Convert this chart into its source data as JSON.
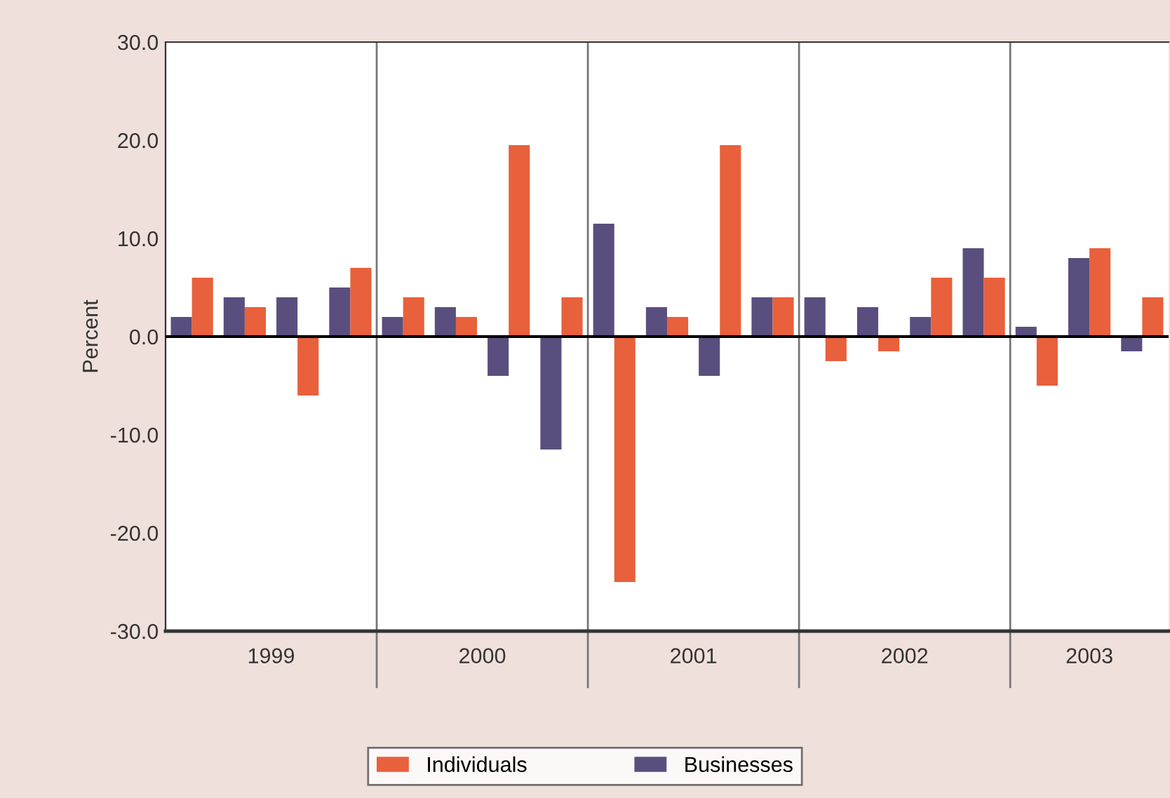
{
  "chart_data": {
    "type": "bar",
    "ylabel": "Percent",
    "categories": [
      null,
      null,
      null,
      null,
      null,
      null,
      null,
      null,
      null,
      null,
      null,
      null,
      null,
      null,
      null,
      null,
      null,
      null,
      null
    ],
    "series": [
      {
        "name": "Businesses",
        "color": "#5a4e7e",
        "values": [
          2,
          4,
          4,
          5,
          2,
          3,
          -4,
          -11.5,
          11.5,
          3,
          -4,
          4,
          4,
          3,
          2,
          9,
          1,
          8,
          -1.5
        ]
      },
      {
        "name": "Individuals",
        "color": "#e8603c",
        "values": [
          6,
          3,
          -6,
          7,
          4,
          2,
          19.5,
          4,
          -25,
          2,
          19.5,
          4,
          -2.5,
          -1.5,
          6,
          6,
          -5,
          9,
          4
        ]
      }
    ],
    "annotations": [
      "1999",
      "2000",
      "2001",
      "2002",
      "2003"
    ],
    "ylim": [
      -30,
      30
    ],
    "yticks": [
      {
        "value": -30,
        "label": "-30.0"
      },
      {
        "value": -20,
        "label": "-20.0"
      },
      {
        "value": -10,
        "label": "-10.0"
      },
      {
        "value": 0,
        "label": "0.0"
      },
      {
        "value": 10,
        "label": "10.0"
      },
      {
        "value": 20,
        "label": "20.0"
      },
      {
        "value": 30,
        "label": "30.0"
      }
    ],
    "grid": false,
    "legend": "bottom"
  }
}
